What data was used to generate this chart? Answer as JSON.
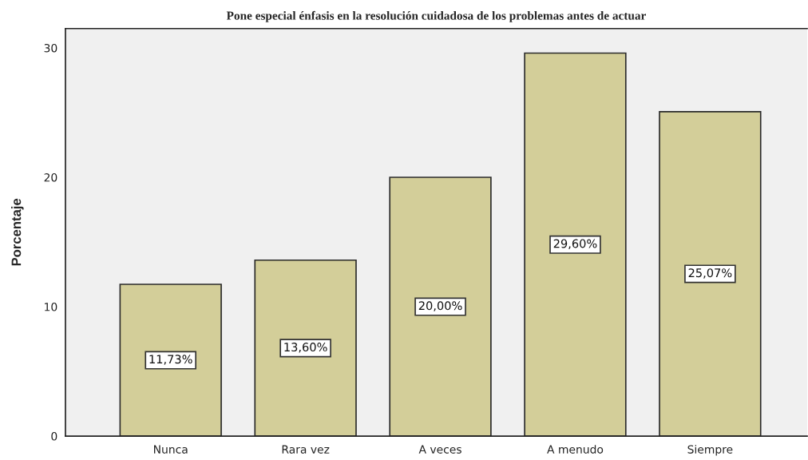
{
  "chart_data": {
    "type": "bar",
    "title": "Pone especial énfasis en la resolución cuidadosa de los problemas antes de actuar",
    "ylabel": "Porcentaje",
    "categories": [
      "Nunca",
      "Rara vez",
      "A veces",
      "A menudo",
      "Siempre"
    ],
    "values": [
      11.73,
      13.6,
      20,
      29.6,
      25.07
    ],
    "color": "#d3ce99",
    "value_labels": [
      "11,73%",
      "13,60%",
      "20,00%",
      "29,60%",
      "25,07%"
    ],
    "ylim": [
      0,
      31.5
    ],
    "yticks": [
      0,
      10,
      20,
      30
    ]
  }
}
